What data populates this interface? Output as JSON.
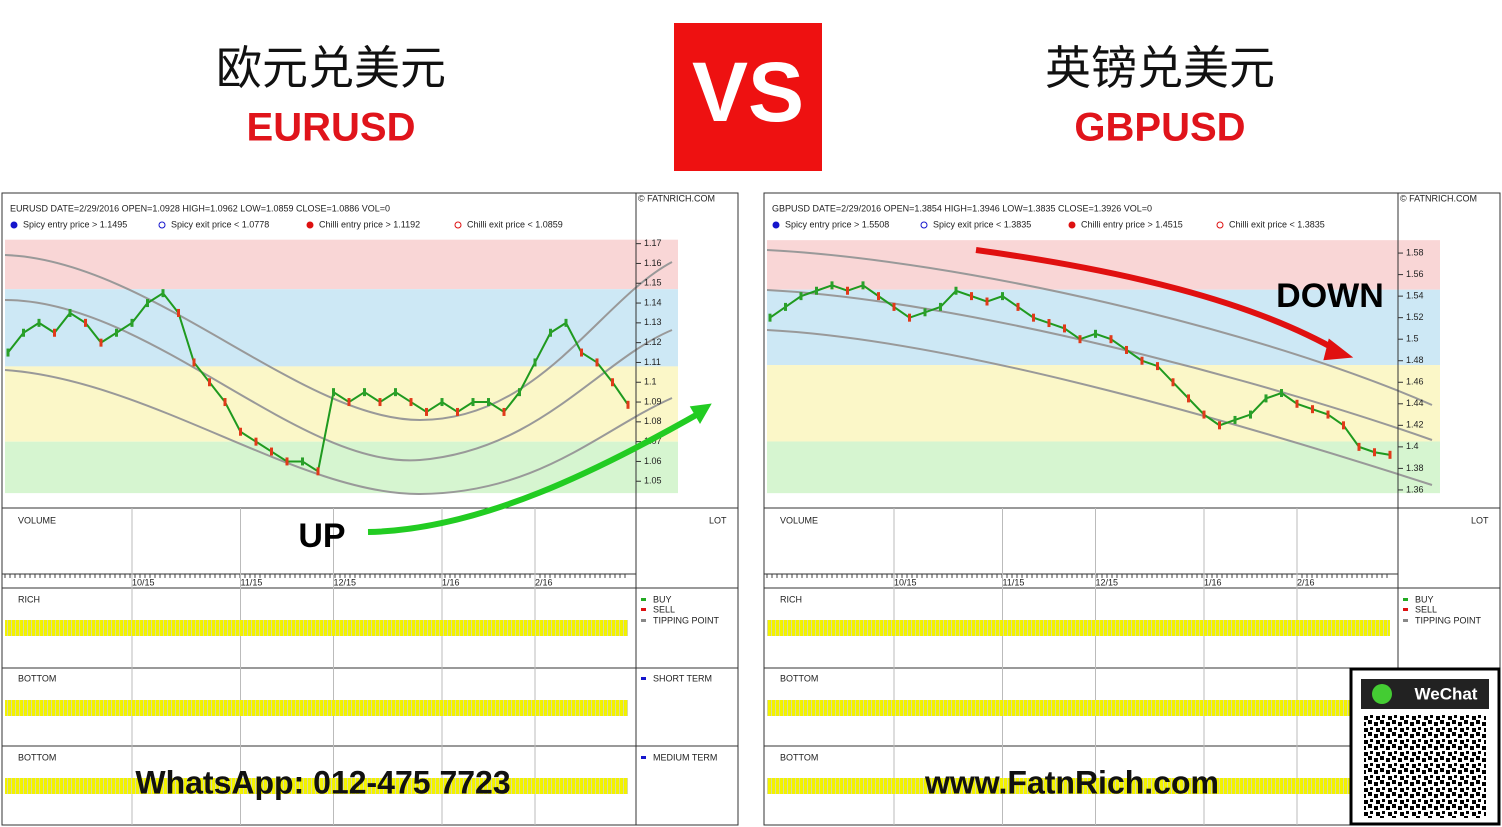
{
  "header": {
    "left_cn": "欧元兑美元",
    "left_code": "EURUSD",
    "vs": "VS",
    "right_cn": "英镑兑美元",
    "right_code": "GBPUSD"
  },
  "panels": {
    "volume": "VOLUME",
    "lot": "LOT",
    "rich": "RICH",
    "buy": "BUY",
    "sell": "SELL",
    "tipping": "TIPPING POINT",
    "bottom": "BOTTOM",
    "short": "SHORT TERM",
    "medium": "MEDIUM TERM"
  },
  "footer": {
    "whatsapp": "WhatsApp: 012-475 7723",
    "website": "www.FatnRich.com",
    "wechat": "WeChat"
  },
  "chart_data": [
    {
      "type": "line",
      "info": "EURUSD    DATE=2/29/2016    OPEN=1.0928    HIGH=1.0962    LOW=1.0859    CLOSE=1.0886    VOL=0",
      "copyright": "© FATNRICH.COM",
      "annotation": "UP",
      "color": "#1f9a1f",
      "legend": [
        {
          "label": "Spicy entry price > 1.1495",
          "color": "#1515cc",
          "filled": true
        },
        {
          "label": "Spicy exit price < 1.0778",
          "color": "#1515cc",
          "filled": false
        },
        {
          "label": "Chilli entry price > 1.1192",
          "color": "#dd1111",
          "filled": true
        },
        {
          "label": "Chilli exit price < 1.0859",
          "color": "#dd1111",
          "filled": false
        }
      ],
      "categories": [
        null,
        null,
        null,
        null,
        null,
        null,
        null,
        null,
        "10/15",
        null,
        null,
        null,
        null,
        null,
        null,
        "11/15",
        null,
        null,
        null,
        null,
        null,
        "12/15",
        null,
        null,
        null,
        null,
        null,
        null,
        "1/16",
        null,
        null,
        null,
        null,
        null,
        "2/16",
        null,
        null,
        null,
        null,
        null,
        null
      ],
      "values": [
        1.115,
        1.125,
        1.13,
        1.125,
        1.135,
        1.13,
        1.12,
        1.125,
        1.13,
        1.14,
        1.145,
        1.135,
        1.11,
        1.1,
        1.09,
        1.075,
        1.07,
        1.065,
        1.06,
        1.06,
        1.055,
        1.095,
        1.09,
        1.095,
        1.09,
        1.095,
        1.09,
        1.085,
        1.09,
        1.085,
        1.09,
        1.09,
        1.085,
        1.095,
        1.11,
        1.125,
        1.13,
        1.115,
        1.11,
        1.1,
        1.0886
      ],
      "ylim": [
        1.038,
        1.187
      ],
      "yticks": [
        1.05,
        1.06,
        1.07,
        1.08,
        1.09,
        1.1,
        1.11,
        1.12,
        1.13,
        1.14,
        1.15,
        1.16,
        1.17
      ],
      "zones": [
        {
          "from": 1.147,
          "to": 1.172,
          "color": "#f9d6d6"
        },
        {
          "from": 1.108,
          "to": 1.147,
          "color": "#cde8f5"
        },
        {
          "from": 1.07,
          "to": 1.108,
          "color": "#fbf7c8"
        },
        {
          "from": 1.044,
          "to": 1.07,
          "color": "#d6f5d0"
        }
      ]
    },
    {
      "type": "line",
      "info": "GBPUSD    DATE=2/29/2016    OPEN=1.3854    HIGH=1.3946    LOW=1.3835    CLOSE=1.3926    VOL=0",
      "copyright": "© FATNRICH.COM",
      "annotation": "DOWN",
      "color": "#1f9a1f",
      "legend": [
        {
          "label": "Spicy entry price > 1.5508",
          "color": "#1515cc",
          "filled": true
        },
        {
          "label": "Spicy exit price < 1.3835",
          "color": "#1515cc",
          "filled": false
        },
        {
          "label": "Chilli entry price > 1.4515",
          "color": "#dd1111",
          "filled": true
        },
        {
          "label": "Chilli exit price < 1.3835",
          "color": "#dd1111",
          "filled": false
        }
      ],
      "categories": [
        null,
        null,
        null,
        null,
        null,
        null,
        null,
        null,
        "10/15",
        null,
        null,
        null,
        null,
        null,
        null,
        "11/15",
        null,
        null,
        null,
        null,
        null,
        "12/15",
        null,
        null,
        null,
        null,
        null,
        null,
        "1/16",
        null,
        null,
        null,
        null,
        null,
        "2/16",
        null,
        null,
        null,
        null,
        null,
        null
      ],
      "values": [
        1.52,
        1.53,
        1.54,
        1.545,
        1.55,
        1.545,
        1.55,
        1.54,
        1.53,
        1.52,
        1.525,
        1.53,
        1.545,
        1.54,
        1.535,
        1.54,
        1.53,
        1.52,
        1.515,
        1.51,
        1.5,
        1.505,
        1.5,
        1.49,
        1.48,
        1.475,
        1.46,
        1.445,
        1.43,
        1.42,
        1.425,
        1.43,
        1.445,
        1.45,
        1.44,
        1.435,
        1.43,
        1.42,
        1.4,
        1.395,
        1.3926
      ],
      "ylim": [
        1.346,
        1.62
      ],
      "yticks": [
        1.36,
        1.38,
        1.4,
        1.42,
        1.44,
        1.46,
        1.48,
        1.5,
        1.52,
        1.54,
        1.56,
        1.58
      ],
      "zones": [
        {
          "from": 1.546,
          "to": 1.592,
          "color": "#f9d6d6"
        },
        {
          "from": 1.476,
          "to": 1.546,
          "color": "#cde8f5"
        },
        {
          "from": 1.405,
          "to": 1.476,
          "color": "#fbf7c8"
        },
        {
          "from": 1.357,
          "to": 1.405,
          "color": "#d6f5d0"
        }
      ]
    }
  ]
}
